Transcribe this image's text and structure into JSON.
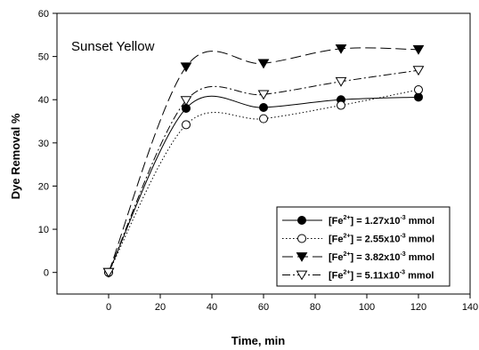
{
  "chart_data": {
    "type": "line",
    "annotation": "Sunset Yellow",
    "xlabel": "Time, min",
    "ylabel": "Dye Removal %",
    "xlim": [
      -20,
      140
    ],
    "ylim": [
      -5,
      60
    ],
    "xticks": [
      0,
      20,
      40,
      60,
      80,
      100,
      120,
      140
    ],
    "yticks": [
      0,
      10,
      20,
      30,
      40,
      50,
      60
    ],
    "grid": false,
    "legend_position": "bottom-right",
    "x": [
      0,
      30,
      60,
      90,
      120
    ],
    "series": [
      {
        "name": "[Fe2+] = 1.27x10-3 mmol",
        "label_parts": [
          "[Fe",
          "2+",
          "] = 1.27x10",
          "-3",
          " mmol"
        ],
        "values": [
          0,
          38,
          38.2,
          40,
          40.6
        ],
        "marker": "circle-filled",
        "line_style": "solid"
      },
      {
        "name": "[Fe2+] = 2.55x10-3 mmol",
        "label_parts": [
          "[Fe",
          "2+",
          "] = 2.55x10",
          "-3",
          " mmol"
        ],
        "values": [
          0,
          34.2,
          35.6,
          38.7,
          42.3
        ],
        "marker": "circle-open",
        "line_style": "dotted"
      },
      {
        "name": "[Fe2+] = 3.82x10-3 mmol",
        "label_parts": [
          "[Fe",
          "2+",
          "] = 3.82x10",
          "-3",
          " mmol"
        ],
        "values": [
          0,
          47.6,
          48.4,
          51.8,
          51.6
        ],
        "marker": "triangle-down-filled",
        "line_style": "dashed"
      },
      {
        "name": "[Fe2+] = 5.11x10-3 mmol",
        "label_parts": [
          "[Fe",
          "2+",
          "] = 5.11x10",
          "-3",
          " mmol"
        ],
        "values": [
          0,
          39.8,
          41.2,
          44.2,
          46.8
        ],
        "marker": "triangle-down-open",
        "line_style": "dash-dot"
      }
    ]
  }
}
